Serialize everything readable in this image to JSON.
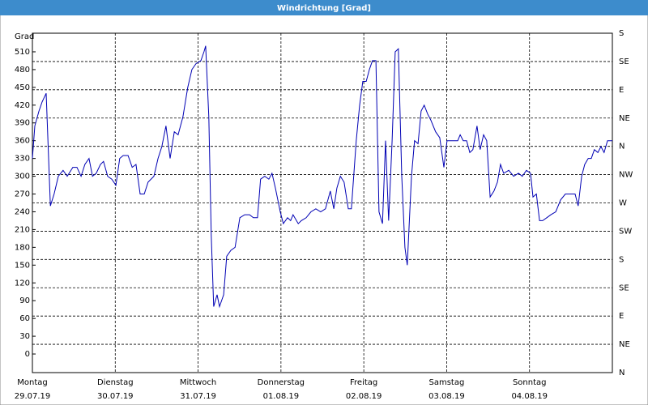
{
  "chart_data": {
    "type": "line",
    "title": "Windrichtung [Grad]",
    "y_label": "Grad",
    "x": [
      0,
      0.7,
      1.9,
      2.8,
      4.0,
      5.2,
      6.3,
      7.5,
      8.9,
      10.1,
      11.7,
      12.9,
      14.1,
      15.2,
      16.4,
      17.4,
      18.5,
      19.7,
      20.6,
      21.8,
      23.0,
      24.2,
      25.3,
      26.3,
      27.7,
      28.9,
      30.0,
      31.2,
      32.4,
      33.5,
      35.2,
      36.4,
      37.5,
      38.7,
      39.9,
      41.1,
      42.2,
      43.6,
      45.0,
      46.2,
      47.4,
      48.8,
      49.7,
      50.2,
      51.1,
      51.8,
      52.5,
      53.5,
      54.2,
      55.4,
      56.3,
      57.5,
      58.7,
      60.1,
      61.5,
      62.9,
      64.0,
      65.2,
      66.1,
      67.3,
      68.5,
      69.4,
      70.4,
      71.8,
      72.7,
      73.9,
      74.8,
      75.5,
      77.0,
      77.9,
      79.3,
      80.7,
      82.1,
      83.5,
      84.9,
      86.3,
      87.3,
      88.2,
      89.2,
      90.3,
      91.5,
      92.4,
      93.8,
      94.8,
      95.7,
      96.7,
      97.6,
      98.5,
      99.5,
      100.4,
      101.4,
      102.3,
      103.2,
      104.2,
      105.1,
      106.0,
      107.0,
      107.9,
      108.6,
      109.8,
      110.7,
      111.7,
      112.6,
      113.5,
      114.5,
      115.4,
      116.8,
      118.0,
      119.2,
      120.1,
      121.5,
      123.2,
      123.9,
      124.8,
      125.8,
      126.7,
      127.6,
      128.8,
      129.7,
      130.7,
      131.6,
      132.6,
      133.7,
      134.7,
      135.6,
      136.5,
      138.0,
      139.4,
      140.8,
      141.9,
      143.1,
      144.3,
      145.0,
      146.0,
      146.9,
      147.8,
      149.0,
      150.2,
      151.6,
      153.0,
      154.4,
      155.8,
      157.2,
      158.1,
      159.1,
      160.0,
      161.0,
      161.9,
      162.8,
      163.8,
      164.7,
      165.6,
      166.6,
      168.0
    ],
    "series": [
      {
        "name": "Windrichtung",
        "color": "#0000b4",
        "values": [
          330,
          385,
          410,
          425,
          440,
          250,
          270,
          300,
          310,
          300,
          315,
          315,
          300,
          320,
          330,
          300,
          305,
          320,
          325,
          300,
          295,
          285,
          330,
          335,
          335,
          315,
          320,
          270,
          270,
          290,
          300,
          330,
          350,
          385,
          330,
          375,
          370,
          400,
          450,
          480,
          490,
          495,
          510,
          520,
          400,
          200,
          80,
          100,
          80,
          100,
          165,
          175,
          180,
          230,
          235,
          235,
          230,
          230,
          295,
          300,
          295,
          305,
          280,
          240,
          220,
          230,
          225,
          235,
          220,
          225,
          230,
          240,
          245,
          240,
          245,
          275,
          245,
          280,
          300,
          290,
          245,
          245,
          360,
          420,
          460,
          460,
          480,
          495,
          495,
          240,
          220,
          360,
          225,
          360,
          510,
          515,
          300,
          180,
          150,
          300,
          360,
          355,
          410,
          420,
          405,
          395,
          375,
          365,
          315,
          360,
          360,
          360,
          370,
          360,
          360,
          340,
          345,
          385,
          345,
          370,
          360,
          265,
          275,
          290,
          320,
          305,
          310,
          300,
          305,
          300,
          310,
          305,
          265,
          270,
          225,
          225,
          230,
          235,
          240,
          260,
          270,
          270,
          270,
          250,
          300,
          320,
          330,
          330,
          345,
          340,
          350,
          340,
          360,
          360
        ]
      }
    ],
    "xlim": [
      0,
      168
    ],
    "xticks": [
      {
        "value": 0,
        "label": "Montag"
      },
      {
        "value": 24,
        "label": "Dienstag"
      },
      {
        "value": 48,
        "label": "Mittwoch"
      },
      {
        "value": 72,
        "label": "Donnerstag"
      },
      {
        "value": 96,
        "label": "Freitag"
      },
      {
        "value": 120,
        "label": "Samstag"
      },
      {
        "value": 144,
        "label": "Sonntag"
      }
    ],
    "xtick_dates": [
      "29.07.19",
      "30.07.19",
      "31.07.19",
      "01.08.19",
      "02.08.19",
      "03.08.19",
      "04.08.19"
    ],
    "ylim": [
      -31.4,
      541.4
    ],
    "yticks": [
      0,
      30,
      60,
      90,
      120,
      150,
      180,
      210,
      240,
      270,
      300,
      330,
      360,
      390,
      420,
      450,
      480,
      510
    ],
    "y2lim": [
      0,
      540
    ],
    "y2ticks": [
      {
        "value": 0,
        "label": "N"
      },
      {
        "value": 45,
        "label": "NE"
      },
      {
        "value": 90,
        "label": "E"
      },
      {
        "value": 135,
        "label": "SE"
      },
      {
        "value": 180,
        "label": "S"
      },
      {
        "value": 225,
        "label": "SW"
      },
      {
        "value": 270,
        "label": "W"
      },
      {
        "value": 315,
        "label": "NW"
      },
      {
        "value": 360,
        "label": "N"
      },
      {
        "value": 405,
        "label": "NE"
      },
      {
        "value": 450,
        "label": "E"
      },
      {
        "value": 495,
        "label": "SE"
      },
      {
        "value": 540,
        "label": "S"
      }
    ],
    "grid": true
  }
}
